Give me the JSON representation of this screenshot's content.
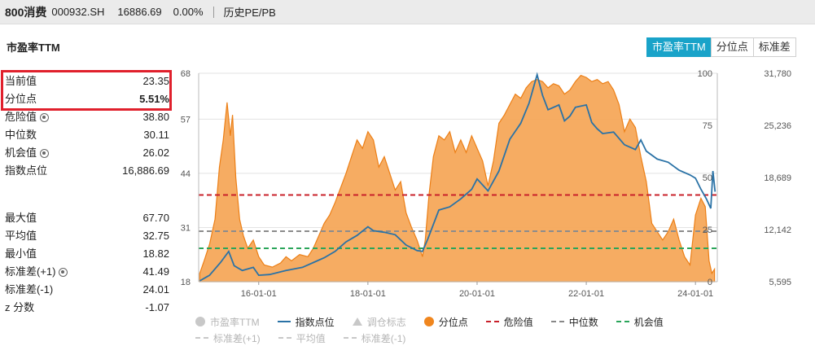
{
  "header": {
    "name": "800消费",
    "code": "000932.SH",
    "price": "16886.69",
    "change": "0.00%",
    "link": "历史PE/PB"
  },
  "section_title": "市盈率TTM",
  "tabs": [
    {
      "label": "市盈率TTM",
      "active": true
    },
    {
      "label": "分位点",
      "active": false
    },
    {
      "label": "标准差",
      "active": false
    }
  ],
  "stats": {
    "current": {
      "label": "当前值",
      "value": "23.35"
    },
    "percentile": {
      "label": "分位点",
      "value": "5.51%"
    },
    "danger": {
      "label": "危险值",
      "value": "38.80"
    },
    "median": {
      "label": "中位数",
      "value": "30.11"
    },
    "opportunity": {
      "label": "机会值",
      "value": "26.02"
    },
    "index_level": {
      "label": "指数点位",
      "value": "16,886.69"
    },
    "max": {
      "label": "最大值",
      "value": "67.70"
    },
    "mean": {
      "label": "平均值",
      "value": "32.75"
    },
    "min": {
      "label": "最小值",
      "value": "18.82"
    },
    "std_plus": {
      "label": "标准差(+1)",
      "value": "41.49"
    },
    "std_minus": {
      "label": "标准差(-1)",
      "value": "24.01"
    },
    "zscore": {
      "label": "z 分数",
      "value": "-1.07"
    }
  },
  "legend": [
    {
      "label": "市盈率TTM",
      "enabled": false,
      "symbol": "dot",
      "color": "#c8c8c8"
    },
    {
      "label": "指数点位",
      "enabled": true,
      "symbol": "line",
      "color": "#2a72a6"
    },
    {
      "label": "调仓标志",
      "enabled": false,
      "symbol": "triangle",
      "color": "#c8c8c8"
    },
    {
      "label": "分位点",
      "enabled": true,
      "symbol": "dot",
      "color": "#f0861e"
    },
    {
      "label": "危险值",
      "enabled": true,
      "symbol": "dash",
      "color": "#c8202a"
    },
    {
      "label": "中位数",
      "enabled": true,
      "symbol": "dash",
      "color": "#888888"
    },
    {
      "label": "机会值",
      "enabled": true,
      "symbol": "dash",
      "color": "#2aa55a"
    },
    {
      "label": "标准差(+1)",
      "enabled": false,
      "symbol": "dash",
      "color": "#c8c8c8"
    },
    {
      "label": "平均值",
      "enabled": false,
      "symbol": "dash",
      "color": "#c8c8c8"
    },
    {
      "label": "标准差(-1)",
      "enabled": false,
      "symbol": "dash",
      "color": "#c8c8c8"
    }
  ],
  "chart_data": {
    "type": "area",
    "pe_axis": {
      "ticks": [
        "18",
        "31",
        "44",
        "57",
        "68"
      ],
      "range": [
        18,
        68
      ]
    },
    "percentile_axis": {
      "ticks": [
        "0",
        "25",
        "50",
        "75",
        "100"
      ],
      "range": [
        0,
        100
      ]
    },
    "index_axis": {
      "ticks": [
        "5,595",
        "12,142",
        "18,689",
        "25,236",
        "31,780"
      ],
      "range": [
        5595,
        31780
      ]
    },
    "x_ticks": [
      {
        "label": "16-01-01",
        "t": 2016.0
      },
      {
        "label": "18-01-01",
        "t": 2018.0
      },
      {
        "label": "20-01-01",
        "t": 2020.0
      },
      {
        "label": "22-01-01",
        "t": 2022.0
      },
      {
        "label": "24-01-01",
        "t": 2024.0
      }
    ],
    "x_range": [
      2014.9,
      2024.4
    ],
    "lines": {
      "danger": 38.8,
      "median": 30.11,
      "opportunity": 26.02
    },
    "series": [
      {
        "name": "分位点",
        "points": [
          [
            2014.92,
            4
          ],
          [
            2015.0,
            10
          ],
          [
            2015.1,
            18
          ],
          [
            2015.2,
            30
          ],
          [
            2015.28,
            55
          ],
          [
            2015.35,
            68
          ],
          [
            2015.42,
            86
          ],
          [
            2015.48,
            70
          ],
          [
            2015.52,
            80
          ],
          [
            2015.58,
            50
          ],
          [
            2015.65,
            30
          ],
          [
            2015.72,
            22
          ],
          [
            2015.8,
            16
          ],
          [
            2015.9,
            20
          ],
          [
            2016.0,
            12
          ],
          [
            2016.1,
            8
          ],
          [
            2016.25,
            7
          ],
          [
            2016.4,
            9
          ],
          [
            2016.5,
            12
          ],
          [
            2016.6,
            10
          ],
          [
            2016.75,
            13
          ],
          [
            2016.9,
            12
          ],
          [
            2017.0,
            16
          ],
          [
            2017.1,
            22
          ],
          [
            2017.2,
            28
          ],
          [
            2017.3,
            32
          ],
          [
            2017.4,
            38
          ],
          [
            2017.5,
            45
          ],
          [
            2017.6,
            52
          ],
          [
            2017.7,
            60
          ],
          [
            2017.8,
            68
          ],
          [
            2017.9,
            64
          ],
          [
            2018.0,
            72
          ],
          [
            2018.1,
            68
          ],
          [
            2018.2,
            55
          ],
          [
            2018.3,
            60
          ],
          [
            2018.4,
            52
          ],
          [
            2018.5,
            44
          ],
          [
            2018.6,
            48
          ],
          [
            2018.7,
            33
          ],
          [
            2018.8,
            26
          ],
          [
            2018.9,
            20
          ],
          [
            2019.0,
            12
          ],
          [
            2019.05,
            20
          ],
          [
            2019.12,
            42
          ],
          [
            2019.2,
            60
          ],
          [
            2019.3,
            70
          ],
          [
            2019.4,
            68
          ],
          [
            2019.5,
            72
          ],
          [
            2019.6,
            62
          ],
          [
            2019.7,
            68
          ],
          [
            2019.8,
            62
          ],
          [
            2019.9,
            70
          ],
          [
            2020.0,
            64
          ],
          [
            2020.1,
            58
          ],
          [
            2020.2,
            46
          ],
          [
            2020.3,
            58
          ],
          [
            2020.4,
            76
          ],
          [
            2020.5,
            80
          ],
          [
            2020.6,
            85
          ],
          [
            2020.7,
            90
          ],
          [
            2020.8,
            88
          ],
          [
            2020.9,
            93
          ],
          [
            2021.0,
            96
          ],
          [
            2021.1,
            97
          ],
          [
            2021.2,
            96
          ],
          [
            2021.3,
            93
          ],
          [
            2021.4,
            95
          ],
          [
            2021.5,
            94
          ],
          [
            2021.6,
            90
          ],
          [
            2021.7,
            92
          ],
          [
            2021.8,
            96
          ],
          [
            2021.9,
            99
          ],
          [
            2022.0,
            98
          ],
          [
            2022.1,
            96
          ],
          [
            2022.2,
            97
          ],
          [
            2022.3,
            95
          ],
          [
            2022.4,
            96
          ],
          [
            2022.5,
            92
          ],
          [
            2022.6,
            85
          ],
          [
            2022.7,
            72
          ],
          [
            2022.8,
            78
          ],
          [
            2022.9,
            74
          ],
          [
            2023.0,
            60
          ],
          [
            2023.1,
            48
          ],
          [
            2023.15,
            38
          ],
          [
            2023.2,
            28
          ],
          [
            2023.3,
            24
          ],
          [
            2023.4,
            20
          ],
          [
            2023.5,
            24
          ],
          [
            2023.6,
            30
          ],
          [
            2023.7,
            20
          ],
          [
            2023.8,
            12
          ],
          [
            2023.9,
            8
          ],
          [
            2024.0,
            32
          ],
          [
            2024.1,
            40
          ],
          [
            2024.18,
            36
          ],
          [
            2024.25,
            10
          ],
          [
            2024.3,
            4
          ],
          [
            2024.35,
            6
          ]
        ]
      },
      {
        "name": "指数点位",
        "points": [
          [
            2014.92,
            5700
          ],
          [
            2015.1,
            6400
          ],
          [
            2015.3,
            8000
          ],
          [
            2015.45,
            9400
          ],
          [
            2015.55,
            7600
          ],
          [
            2015.7,
            7000
          ],
          [
            2015.9,
            7400
          ],
          [
            2016.0,
            6400
          ],
          [
            2016.2,
            6500
          ],
          [
            2016.5,
            7000
          ],
          [
            2016.8,
            7400
          ],
          [
            2017.0,
            8000
          ],
          [
            2017.2,
            8600
          ],
          [
            2017.4,
            9400
          ],
          [
            2017.6,
            10600
          ],
          [
            2017.8,
            11400
          ],
          [
            2018.0,
            12500
          ],
          [
            2018.1,
            12000
          ],
          [
            2018.3,
            11800
          ],
          [
            2018.5,
            11500
          ],
          [
            2018.7,
            10200
          ],
          [
            2018.9,
            9500
          ],
          [
            2019.0,
            9400
          ],
          [
            2019.1,
            11000
          ],
          [
            2019.3,
            14600
          ],
          [
            2019.5,
            15000
          ],
          [
            2019.7,
            16000
          ],
          [
            2019.9,
            17200
          ],
          [
            2020.0,
            18500
          ],
          [
            2020.2,
            17000
          ],
          [
            2020.4,
            19500
          ],
          [
            2020.6,
            23500
          ],
          [
            2020.8,
            25500
          ],
          [
            2020.95,
            28000
          ],
          [
            2021.1,
            31600
          ],
          [
            2021.2,
            29000
          ],
          [
            2021.3,
            27200
          ],
          [
            2021.5,
            27800
          ],
          [
            2021.6,
            25800
          ],
          [
            2021.7,
            26400
          ],
          [
            2021.8,
            27500
          ],
          [
            2022.0,
            27800
          ],
          [
            2022.1,
            25600
          ],
          [
            2022.2,
            24800
          ],
          [
            2022.3,
            24200
          ],
          [
            2022.5,
            24400
          ],
          [
            2022.7,
            22800
          ],
          [
            2022.9,
            22200
          ],
          [
            2023.0,
            23400
          ],
          [
            2023.1,
            22000
          ],
          [
            2023.3,
            21000
          ],
          [
            2023.5,
            20600
          ],
          [
            2023.7,
            19600
          ],
          [
            2023.9,
            19000
          ],
          [
            2024.0,
            18600
          ],
          [
            2024.1,
            17200
          ],
          [
            2024.2,
            16000
          ],
          [
            2024.28,
            14800
          ],
          [
            2024.32,
            19500
          ],
          [
            2024.36,
            16900
          ]
        ]
      }
    ]
  }
}
